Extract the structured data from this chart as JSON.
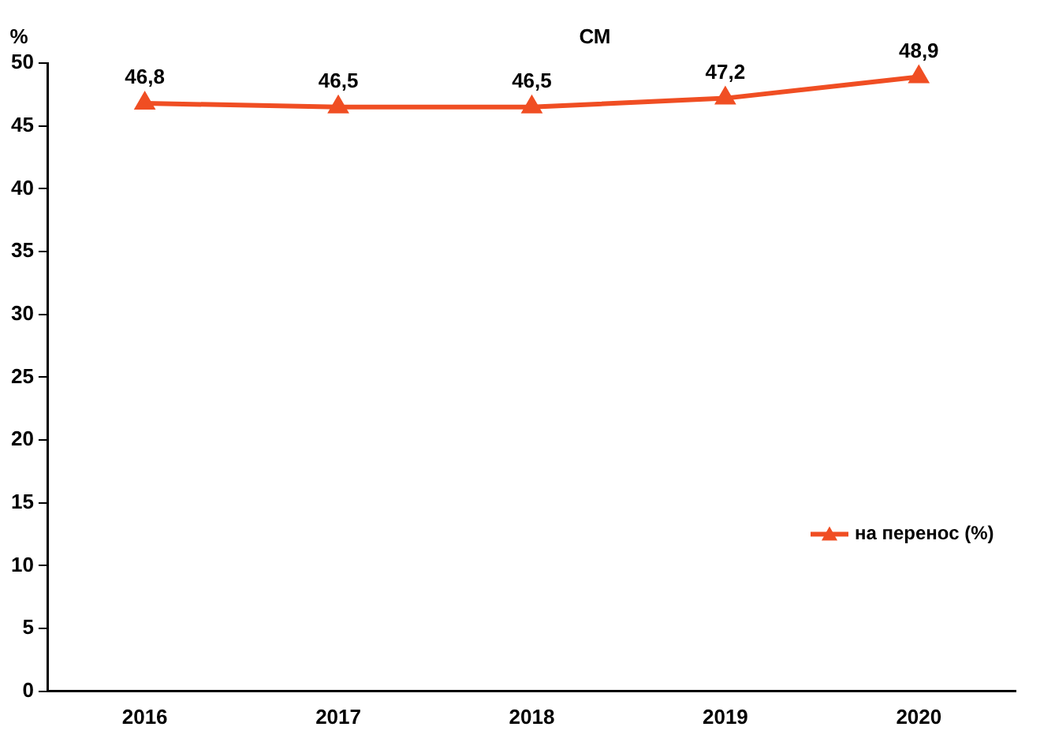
{
  "chart_data": {
    "type": "line",
    "title": "СМ",
    "ylabel": "%",
    "categories": [
      "2016",
      "2017",
      "2018",
      "2019",
      "2020"
    ],
    "series": [
      {
        "name": "на перенос (%)",
        "color": "#f04e23",
        "values": [
          46.8,
          46.5,
          46.5,
          47.2,
          48.9
        ],
        "value_labels": [
          "46,8",
          "46,5",
          "46,5",
          "47,2",
          "48,9"
        ]
      }
    ],
    "ylim": [
      0,
      50
    ],
    "yticks": [
      0,
      5,
      10,
      15,
      20,
      25,
      30,
      35,
      40,
      45,
      50
    ],
    "grid": false,
    "legend": "right",
    "marker": "triangle",
    "line_style": "solid"
  }
}
